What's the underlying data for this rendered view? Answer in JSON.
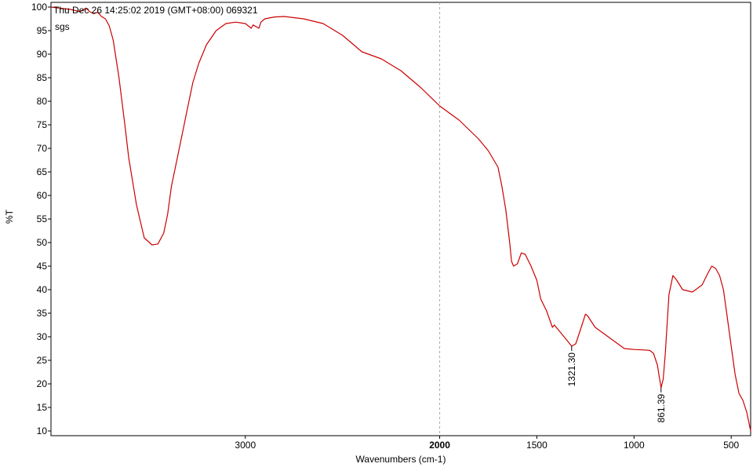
{
  "chart_data": {
    "type": "line",
    "header_line1": "Thu Dec 26 14:25:02 2019 (GMT+08:00)  069321",
    "header_line2": "sgs",
    "xlabel": "Wavenumbers (cm-1)",
    "ylabel": "%T",
    "xlim": [
      4000,
      400
    ],
    "ylim": [
      9,
      101
    ],
    "x_ticks": [
      3000,
      2000,
      1500,
      1000,
      500
    ],
    "x_tick_bold": 2000,
    "y_ticks": [
      10,
      15,
      20,
      25,
      30,
      35,
      40,
      45,
      50,
      55,
      60,
      65,
      70,
      75,
      80,
      85,
      90,
      95,
      100
    ],
    "reference_line_x": 2000,
    "line_color": "#cc0000",
    "series": [
      {
        "x": [
          4000,
          3900,
          3850,
          3820,
          3800,
          3780,
          3760,
          3740,
          3720,
          3700,
          3680,
          3650,
          3620,
          3600,
          3560,
          3520,
          3480,
          3450,
          3420,
          3400,
          3380,
          3350,
          3320,
          3300,
          3270,
          3240,
          3200,
          3150,
          3100,
          3050,
          3000,
          2970,
          2960,
          2930,
          2920,
          2900,
          2850,
          2800,
          2700,
          2600,
          2500,
          2400,
          2300,
          2200,
          2100,
          2000,
          1950,
          1900,
          1850,
          1800,
          1750,
          1700,
          1680,
          1660,
          1640,
          1630,
          1620,
          1600,
          1580,
          1560,
          1530,
          1500,
          1480,
          1450,
          1420,
          1410,
          1380,
          1350,
          1321,
          1300,
          1280,
          1250,
          1240,
          1200,
          1150,
          1100,
          1050,
          1000,
          950,
          920,
          900,
          880,
          870,
          861,
          850,
          840,
          820,
          800,
          780,
          750,
          700,
          650,
          620,
          600,
          580,
          560,
          540,
          520,
          500,
          480,
          460,
          440,
          420,
          400
        ],
        "y": [
          100,
          99.5,
          99,
          99.8,
          99,
          98.6,
          98.9,
          98,
          97.5,
          96,
          93,
          85,
          75,
          68,
          58,
          51,
          49.5,
          49.7,
          52,
          56,
          62,
          68,
          74,
          78,
          84,
          88,
          92,
          95,
          96.5,
          96.8,
          96.5,
          95.5,
          96.2,
          95.5,
          96.8,
          97.5,
          97.9,
          98,
          97.5,
          96.5,
          94,
          90.5,
          89,
          86.5,
          83,
          79,
          77.5,
          76,
          74,
          72,
          69.5,
          66,
          62,
          57,
          50,
          46,
          45,
          45.5,
          47.8,
          47.5,
          45,
          42,
          38,
          35.5,
          32,
          32.5,
          31,
          29.5,
          28,
          28.5,
          31,
          34.8,
          34.5,
          32,
          30.5,
          29,
          27.5,
          27.3,
          27.2,
          27.1,
          26.5,
          24,
          21.5,
          19.2,
          21,
          26,
          39,
          43,
          42,
          40,
          39.5,
          41,
          43.5,
          45,
          44.5,
          43,
          40,
          34,
          28,
          22,
          18,
          16.5,
          14,
          10
        ]
      }
    ],
    "annotations": [
      {
        "text": "1321.30",
        "x": 1321,
        "y": 28
      },
      {
        "text": "861.39",
        "x": 861,
        "y": 19.2
      }
    ]
  }
}
